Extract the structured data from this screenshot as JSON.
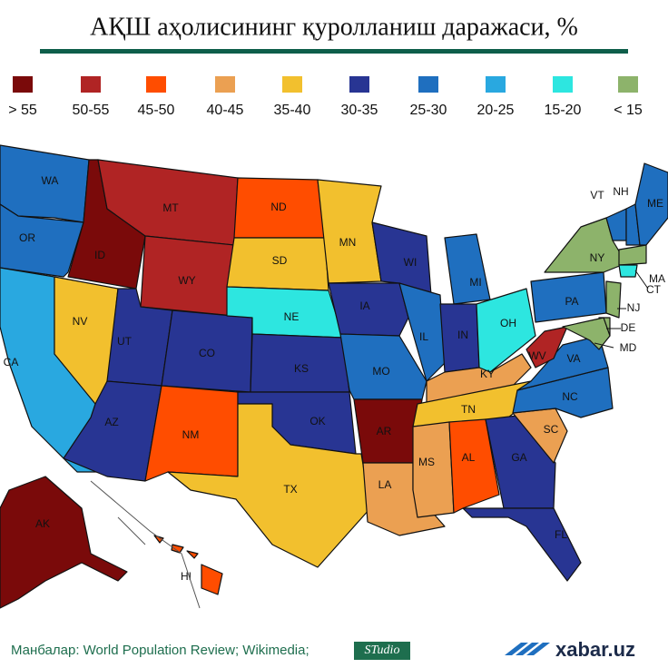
{
  "title": "АҚШ аҳолисининг қуролланиш даражаси, %",
  "legend": [
    {
      "label": "> 55",
      "color": "#7a0a0a"
    },
    {
      "label": "50-55",
      "color": "#b02424"
    },
    {
      "label": "45-50",
      "color": "#ff4d00"
    },
    {
      "label": "40-45",
      "color": "#eba052"
    },
    {
      "label": "35-40",
      "color": "#f2c02e"
    },
    {
      "label": "30-35",
      "color": "#283593"
    },
    {
      "label": "25-30",
      "color": "#1f6fbf"
    },
    {
      "label": "20-25",
      "color": "#29a8e0"
    },
    {
      "label": "15-20",
      "color": "#2de6e0"
    },
    {
      "label": "< 15",
      "color": "#8db36b"
    }
  ],
  "states": [
    {
      "label": "WA",
      "color": "#1f6fbf"
    },
    {
      "label": "OR",
      "color": "#1f6fbf"
    },
    {
      "label": "CA",
      "color": "#29a8e0"
    },
    {
      "label": "NV",
      "color": "#f2c02e"
    },
    {
      "label": "ID",
      "color": "#7a0a0a"
    },
    {
      "label": "MT",
      "color": "#b02424"
    },
    {
      "label": "WY",
      "color": "#b02424"
    },
    {
      "label": "UT",
      "color": "#283593"
    },
    {
      "label": "CO",
      "color": "#283593"
    },
    {
      "label": "AZ",
      "color": "#283593"
    },
    {
      "label": "NM",
      "color": "#ff4d00"
    },
    {
      "label": "ND",
      "color": "#ff4d00"
    },
    {
      "label": "SD",
      "color": "#f2c02e"
    },
    {
      "label": "NE",
      "color": "#2de6e0"
    },
    {
      "label": "KS",
      "color": "#283593"
    },
    {
      "label": "OK",
      "color": "#283593"
    },
    {
      "label": "TX",
      "color": "#f2c02e"
    },
    {
      "label": "MN",
      "color": "#f2c02e"
    },
    {
      "label": "IA",
      "color": "#283593"
    },
    {
      "label": "MO",
      "color": "#1f6fbf"
    },
    {
      "label": "AR",
      "color": "#7a0a0a"
    },
    {
      "label": "LA",
      "color": "#eba052"
    },
    {
      "label": "WI",
      "color": "#283593"
    },
    {
      "label": "IL",
      "color": "#1f6fbf"
    },
    {
      "label": "MI",
      "color": "#1f6fbf"
    },
    {
      "label": "IN",
      "color": "#283593"
    },
    {
      "label": "OH",
      "color": "#2de6e0"
    },
    {
      "label": "KY",
      "color": "#eba052"
    },
    {
      "label": "TN",
      "color": "#f2c02e"
    },
    {
      "label": "MS",
      "color": "#eba052"
    },
    {
      "label": "AL",
      "color": "#ff4d00"
    },
    {
      "label": "GA",
      "color": "#283593"
    },
    {
      "label": "FL",
      "color": "#283593"
    },
    {
      "label": "SC",
      "color": "#eba052"
    },
    {
      "label": "NC",
      "color": "#1f6fbf"
    },
    {
      "label": "VA",
      "color": "#1f6fbf"
    },
    {
      "label": "WV",
      "color": "#b02424"
    },
    {
      "label": "PA",
      "color": "#1f6fbf"
    },
    {
      "label": "NY",
      "color": "#8db36b"
    },
    {
      "label": "VT",
      "color": "#1f6fbf"
    },
    {
      "label": "NH",
      "color": "#1f6fbf"
    },
    {
      "label": "ME",
      "color": "#1f6fbf"
    },
    {
      "label": "MA",
      "color": "#8db36b"
    },
    {
      "label": "CT",
      "color": "#2de6e0"
    },
    {
      "label": "NJ",
      "color": "#8db36b"
    },
    {
      "label": "DE",
      "color": "#8db36b"
    },
    {
      "label": "MD",
      "color": "#8db36b"
    },
    {
      "label": "AK",
      "color": "#7a0a0a"
    },
    {
      "label": "HI",
      "color": "#ff4d00"
    }
  ],
  "footer": {
    "sources": "Манбалар: World Population Review; Wikimedia;",
    "studio": "STudio",
    "logo": "xabar.uz"
  }
}
